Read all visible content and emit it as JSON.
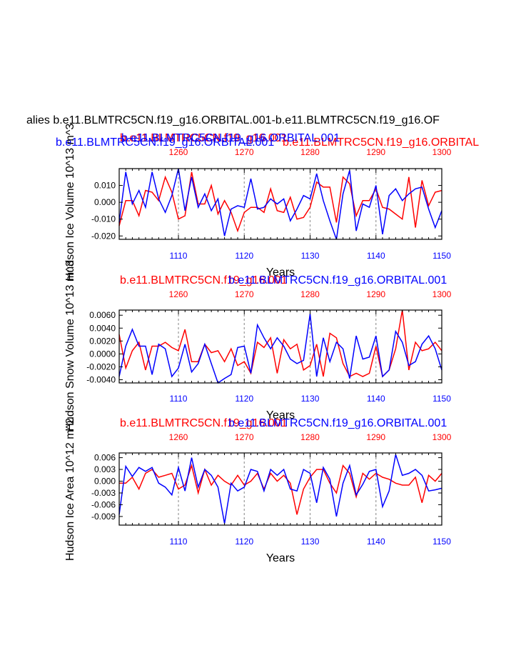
{
  "page": {
    "main_title": "alies b.e11.BLMTRC5CN.f19_g16.ORBITAL.001-b.e11.BLMTRC5CN.f19_g16.OF"
  },
  "colors": {
    "red_series": "#ff0000",
    "blue_series": "#0000ff",
    "frame": "#000000",
    "grid": "#999999"
  },
  "legend": {
    "red_name": "b.e11.BLMTRC5CN.f19_g16.001",
    "blue_name": "b.e11.BLMTRC5CN.f19_g16.ORBITAL.001"
  },
  "chart_data": [
    {
      "type": "line",
      "ylabel": "Hudson Ice Volume 10^13 m^3",
      "xlabel": "Years",
      "ylim": [
        -0.022,
        0.02
      ],
      "yticks": [
        "0.010",
        "0.000",
        "-0.010",
        "-0.020"
      ],
      "ytick_values": [
        0.01,
        0.0,
        -0.01,
        -0.02
      ],
      "x_bottom": {
        "range": [
          1101,
          1150
        ],
        "ticks": [
          "1110",
          "1120",
          "1130",
          "1140",
          "1150"
        ]
      },
      "x_top": {
        "range": [
          1251,
          1300
        ],
        "ticks": [
          "1260",
          "1270",
          "1280",
          "1290",
          "1300"
        ]
      },
      "title_red": "b.e11.BLMTRC5CN.f19_g16.001",
      "title_blue": "b.e11.BLMTRC5CN.f19_g16.ORBITAL.001",
      "title_red2": "b.e11.BLMTRC5CN.f19_g16.ORBITAL",
      "series": [
        {
          "name": "b.e11.BLMTRC5CN.f19_g16.001",
          "color": "#ff0000",
          "values": [
            -0.014,
            0.001,
            0.001,
            -0.008,
            0.007,
            0.006,
            0.001,
            0.015,
            0.006,
            -0.01,
            -0.008,
            0.018,
            -0.001,
            -0.001,
            0.01,
            -0.007,
            0.001,
            -0.006,
            -0.017,
            -0.006,
            -0.003,
            -0.003,
            -0.006,
            0.008,
            -0.005,
            -0.006,
            0.003,
            -0.01,
            -0.009,
            -0.003,
            0.012,
            0.009,
            0.009,
            -0.012,
            0.015,
            0.011,
            -0.008,
            0.001,
            0.001,
            0.008,
            -0.003,
            -0.004,
            -0.007,
            -0.01,
            0.015,
            -0.015,
            0.013,
            -0.002,
            0.006,
            0.007
          ]
        },
        {
          "name": "b.e11.BLMTRC5CN.f19_g16.ORBITAL.001",
          "color": "#0000ff",
          "values": [
            -0.012,
            0.018,
            -0.001,
            0.007,
            -0.003,
            0.018,
            0.002,
            -0.006,
            0.004,
            0.02,
            -0.005,
            0.015,
            -0.003,
            0.005,
            -0.005,
            0.002,
            -0.02,
            -0.004,
            -0.002,
            -0.003,
            0.014,
            -0.004,
            -0.003,
            0.002,
            -0.001,
            0.002,
            -0.011,
            -0.004,
            0.004,
            0.002,
            0.017,
            0.001,
            -0.011,
            -0.022,
            0.005,
            0.019,
            -0.017,
            -0.001,
            -0.003,
            0.01,
            -0.019,
            0.004,
            0.008,
            0.001,
            0.005,
            0.008,
            0.009,
            -0.004,
            -0.015,
            -0.005
          ]
        }
      ]
    },
    {
      "type": "line",
      "ylabel": "Hudson Snow Volume 10^13 m^3",
      "xlabel": "Years",
      "ylim": [
        -0.0045,
        0.0068
      ],
      "yticks": [
        "0.0060",
        "0.0040",
        "0.0020",
        "0.0000",
        "-0.0020",
        "-0.0040"
      ],
      "ytick_values": [
        0.006,
        0.004,
        0.002,
        0.0,
        -0.002,
        -0.004
      ],
      "x_bottom": {
        "range": [
          1101,
          1150
        ],
        "ticks": [
          "1110",
          "1120",
          "1130",
          "1140",
          "1150"
        ]
      },
      "x_top": {
        "range": [
          1251,
          1300
        ],
        "ticks": [
          "1260",
          "1270",
          "1280",
          "1290",
          "1300"
        ]
      },
      "title_red": "b.e11.BLMTRC5CN.f19_g16.001",
      "title_blue": "b.e11.BLMTRC5CN.f19_g16.ORBITAL.001",
      "series": [
        {
          "name": "b.e11.BLMTRC5CN.f19_g16.001",
          "color": "#ff0000",
          "values": [
            0.003,
            -0.0022,
            0.0005,
            0.0018,
            -0.0025,
            0.0012,
            0.0012,
            0.0018,
            0.001,
            0.0005,
            0.0038,
            -0.0012,
            -0.0012,
            0.0015,
            0.0002,
            0.0005,
            -0.0012,
            0.0008,
            -0.0018,
            -0.0012,
            -0.003,
            0.0018,
            0.001,
            0.0025,
            -0.003,
            0.0022,
            0.0008,
            0.0015,
            -0.0025,
            -0.0018,
            0.0015,
            -0.0035,
            0.0032,
            0.0025,
            -0.0015,
            -0.0035,
            -0.003,
            -0.0035,
            -0.003,
            0.0012,
            -0.0035,
            -0.0025,
            0.0008,
            0.0068,
            -0.0025,
            0.0018,
            0.0005,
            0.0008,
            0.0018,
            0.0005
          ]
        },
        {
          "name": "b.e11.BLMTRC5CN.f19_g16.ORBITAL.001",
          "color": "#0000ff",
          "values": [
            -0.0035,
            0.0012,
            0.0038,
            0.0012,
            0.0012,
            -0.0032,
            0.0015,
            0.0008,
            -0.0035,
            -0.0022,
            0.0015,
            -0.0028,
            -0.0015,
            0.0015,
            -0.0015,
            -0.0045,
            -0.0038,
            -0.0032,
            0.001,
            0.0012,
            -0.003,
            0.0045,
            0.0025,
            0.0008,
            0.0025,
            0.0012,
            -0.0008,
            -0.0015,
            -0.001,
            0.0062,
            -0.0035,
            0.0025,
            -0.0012,
            0.0018,
            0.0008,
            -0.0038,
            0.0028,
            -0.0008,
            -0.0005,
            0.0028,
            -0.0035,
            -0.0025,
            0.0035,
            0.0018,
            -0.0018,
            -0.0012,
            0.0015,
            0.0028,
            0.0008,
            -0.0025
          ]
        }
      ]
    },
    {
      "type": "line",
      "ylabel": "Hudson Ice Area 10^12 m^2",
      "xlabel": "Years",
      "ylim": [
        -0.0112,
        0.0072
      ],
      "yticks": [
        "0.006",
        "0.003",
        "0.000",
        "-0.003",
        "-0.006",
        "-0.009"
      ],
      "ytick_values": [
        0.006,
        0.003,
        0.0,
        -0.003,
        -0.006,
        -0.009
      ],
      "x_bottom": {
        "range": [
          1101,
          1150
        ],
        "ticks": [
          "1110",
          "1120",
          "1130",
          "1140",
          "1150"
        ]
      },
      "x_top": {
        "range": [
          1251,
          1300
        ],
        "ticks": [
          "1260",
          "1270",
          "1280",
          "1290",
          "1300"
        ]
      },
      "title_red": "b.e11.BLMTRC5CN.f19_g16.001",
      "title_blue": "b.e11.BLMTRC5CN.f19_g16.ORBITAL.001",
      "series": [
        {
          "name": "b.e11.BLMTRC5CN.f19_g16.001",
          "color": "#ff0000",
          "values": [
            -0.0005,
            -0.0005,
            0.001,
            -0.002,
            0.002,
            0.003,
            0.001,
            0.0015,
            0.002,
            -0.002,
            -0.001,
            0.004,
            -0.003,
            0.003,
            -0.001,
            0.0015,
            0.0,
            -0.001,
            0.0015,
            -0.001,
            0.0,
            0.002,
            -0.002,
            0.002,
            0.0,
            0.0015,
            -0.0005,
            -0.0085,
            -0.002,
            0.001,
            0.003,
            0.003,
            -0.0005,
            -0.003,
            0.004,
            0.002,
            -0.004,
            0.002,
            0.0005,
            0.002,
            0.001,
            0.0005,
            -0.0005,
            -0.001,
            -0.001,
            0.001,
            -0.0055,
            0.0015,
            0.0,
            0.002
          ]
        },
        {
          "name": "b.e11.BLMTRC5CN.f19_g16.ORBITAL.001",
          "color": "#0000ff",
          "values": [
            -0.0085,
            0.0038,
            0.0012,
            0.0035,
            0.0025,
            0.0035,
            -0.0005,
            -0.0015,
            -0.0035,
            0.0035,
            -0.0025,
            0.006,
            -0.0015,
            0.003,
            0.0015,
            -0.0015,
            -0.0108,
            -0.0005,
            -0.0025,
            -0.0015,
            0.003,
            0.0025,
            -0.0025,
            0.003,
            0.0015,
            0.003,
            -0.002,
            -0.0025,
            0.003,
            0.002,
            -0.0055,
            0.0035,
            0.0005,
            -0.009,
            -0.0005,
            0.004,
            -0.0035,
            -0.0008,
            0.0025,
            0.003,
            -0.0065,
            -0.0025,
            0.0068,
            0.0015,
            0.002,
            0.003,
            0.0015,
            -0.0025,
            -0.0022,
            -0.0018
          ]
        }
      ]
    }
  ]
}
